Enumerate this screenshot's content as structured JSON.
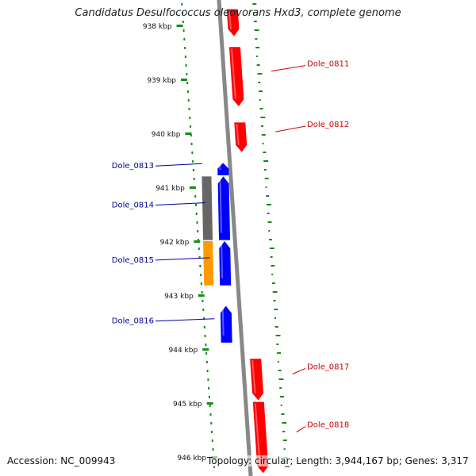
{
  "title": "Candidatus Desulfococcus oleovorans Hxd3, complete genome",
  "footer": {
    "accession": "Accession: NC_009943",
    "summary": "Topology: circular; Length: 3,944,167 bp; Genes: 3,317"
  },
  "colors": {
    "forward_gene": "#ff0000",
    "reverse_gene": "#0000ff",
    "gray_block": "#666666",
    "orange_block": "#ff9900",
    "backbone": "#888888",
    "gc_ticks": "#1a8a1a",
    "forward_label": "#cc0000",
    "reverse_label": "#000099"
  },
  "ruler": {
    "unit": "kbp",
    "ticks": [
      938,
      939,
      940,
      941,
      942,
      943,
      944,
      945,
      946
    ],
    "tick_labels": [
      "938 kbp",
      "939 kbp",
      "940 kbp",
      "941 kbp",
      "942 kbp",
      "943 kbp",
      "944 kbp",
      "945 kbp",
      "946 kbp"
    ]
  },
  "genes": [
    {
      "label": "",
      "strand": "forward",
      "start_kbp": 937.7,
      "end_kbp": 938.2
    },
    {
      "label": "Dole_0811",
      "strand": "forward",
      "start_kbp": 938.4,
      "end_kbp": 939.5
    },
    {
      "label": "Dole_0812",
      "strand": "forward",
      "start_kbp": 939.8,
      "end_kbp": 940.35
    },
    {
      "label": "Dole_0813",
      "strand": "reverse",
      "start_kbp": 940.55,
      "end_kbp": 940.78
    },
    {
      "label": "Dole_0814",
      "strand": "reverse",
      "start_kbp": 940.8,
      "end_kbp": 941.98
    },
    {
      "label": "Dole_0815",
      "strand": "reverse",
      "start_kbp": 942.0,
      "end_kbp": 942.82
    },
    {
      "label": "Dole_0816",
      "strand": "reverse",
      "start_kbp": 943.2,
      "end_kbp": 943.88
    },
    {
      "label": "Dole_0817",
      "strand": "forward",
      "start_kbp": 944.18,
      "end_kbp": 944.95
    },
    {
      "label": "Dole_0818",
      "strand": "forward",
      "start_kbp": 944.98,
      "end_kbp": 946.3
    }
  ],
  "features": [
    {
      "type": "gray",
      "start_kbp": 940.8,
      "end_kbp": 941.98
    },
    {
      "type": "orange",
      "start_kbp": 942.0,
      "end_kbp": 942.82
    }
  ]
}
